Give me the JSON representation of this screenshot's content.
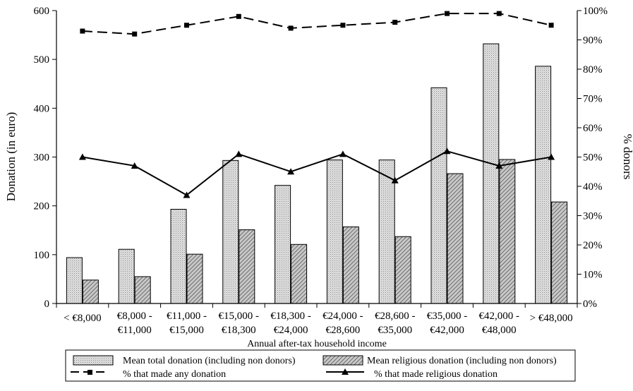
{
  "chart_data": {
    "type": "bar",
    "xlabel": "Annual after-tax household income",
    "ylabel_left": "Donation (in euro)",
    "ylabel_right": "% donors",
    "ylim_left": [
      0,
      600
    ],
    "yticks_left": [
      "0",
      "100",
      "200",
      "300",
      "400",
      "500",
      "600"
    ],
    "ylim_right": [
      0,
      100
    ],
    "yticks_right": [
      "0%",
      "10%",
      "20%",
      "30%",
      "40%",
      "50%",
      "60%",
      "70%",
      "80%",
      "90%",
      "100%"
    ],
    "grid": false,
    "legend_position": "bottom",
    "categories": [
      [
        "< €8,000",
        ""
      ],
      [
        "€8,000 -",
        "€11,000"
      ],
      [
        "€11,000 -",
        "€15,000"
      ],
      [
        "€15,000 -",
        "€18,300"
      ],
      [
        "€18,300 -",
        "€24,000"
      ],
      [
        "€24,000 -",
        "€28,600"
      ],
      [
        "€28,600 -",
        "€35,000"
      ],
      [
        "€35,000 -",
        "€42,000"
      ],
      [
        "€42,000 -",
        "€48,000"
      ],
      [
        "> €48,000",
        ""
      ]
    ],
    "bar_series": [
      {
        "name": "Mean total donation (including non donors)",
        "axis": "left",
        "pattern": "dotted",
        "values": [
          94,
          111,
          193,
          293,
          242,
          294,
          294,
          442,
          532,
          486
        ]
      },
      {
        "name": "Mean religious donation (including non donors)",
        "axis": "left",
        "pattern": "hatched",
        "values": [
          48,
          55,
          101,
          151,
          121,
          157,
          137,
          266,
          295,
          208
        ]
      }
    ],
    "line_series": [
      {
        "name": "% that made any donation",
        "axis": "right",
        "style": "dashed",
        "marker": "square",
        "values": [
          93,
          92,
          95,
          98,
          94,
          95,
          96,
          99,
          99,
          95
        ]
      },
      {
        "name": "% that made religious donation",
        "axis": "right",
        "style": "solid",
        "marker": "triangle",
        "values": [
          50,
          47,
          37,
          51,
          45,
          51,
          42,
          52,
          47,
          50
        ]
      }
    ]
  }
}
